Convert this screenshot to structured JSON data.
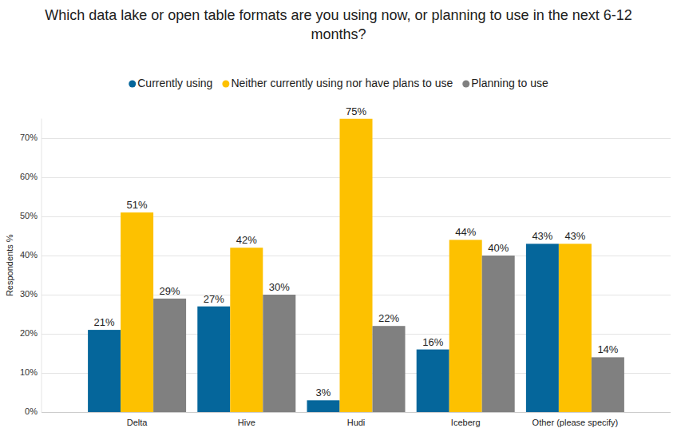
{
  "chart_data": {
    "type": "bar",
    "title": "Which data lake or open table formats are you using now, or planning to use in the next 6-12 months?",
    "y_label": "Respondents %",
    "categories": [
      "Delta",
      "Hive",
      "Hudi",
      "Iceberg",
      "Other (please specify)"
    ],
    "series": [
      {
        "name": "Currently using",
        "color": "#05669b",
        "values": [
          21,
          27,
          3,
          16,
          43
        ],
        "value_labels": [
          "21%",
          "27%",
          "3%",
          "16%",
          "43%"
        ]
      },
      {
        "name": "Neither currently using nor have plans to use",
        "color": "#fdc100",
        "values": [
          51,
          42,
          75,
          44,
          43
        ],
        "value_labels": [
          "51%",
          "42%",
          "75%",
          "44%",
          "43%"
        ]
      },
      {
        "name": "Planning to use",
        "color": "#808080",
        "values": [
          29,
          30,
          22,
          40,
          14
        ],
        "value_labels": [
          "29%",
          "30%",
          "22%",
          "40%",
          "14%"
        ]
      }
    ],
    "ylim": [
      0,
      75
    ],
    "yticks": [
      {
        "value": 0,
        "label": "0%"
      },
      {
        "value": 10,
        "label": "10%"
      },
      {
        "value": 20,
        "label": "20%"
      },
      {
        "value": 30,
        "label": "30%"
      },
      {
        "value": 40,
        "label": "40%"
      },
      {
        "value": 50,
        "label": "50%"
      },
      {
        "value": 60,
        "label": "60%"
      },
      {
        "value": 70,
        "label": "70%"
      }
    ],
    "grid": true,
    "legend": "top",
    "data_labels": true
  }
}
